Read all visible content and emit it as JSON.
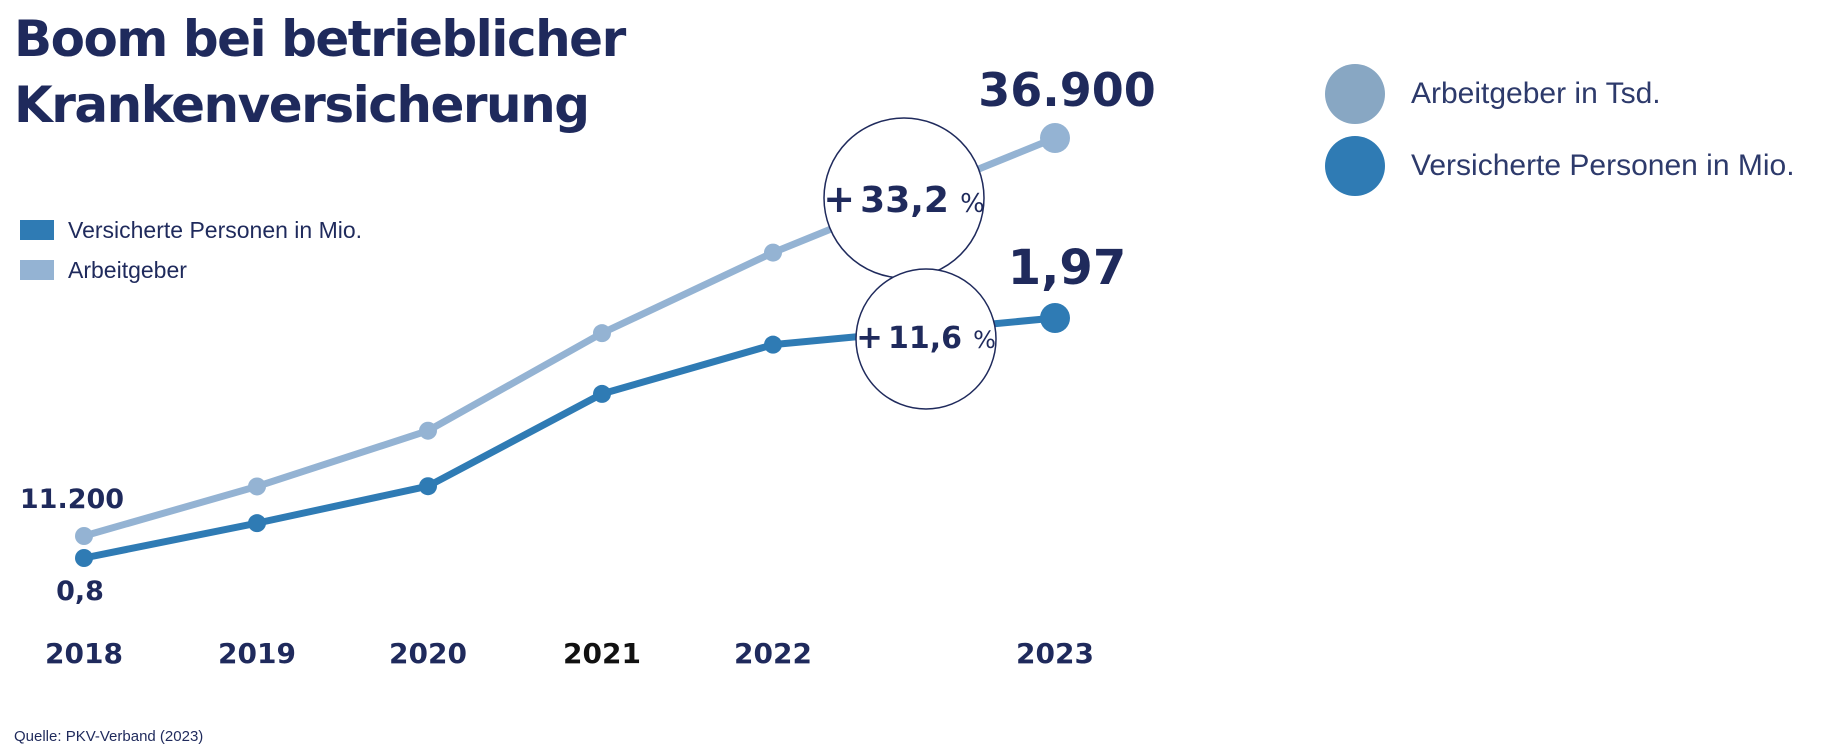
{
  "title": "Boom bei betrieblicher Krankenversicherung",
  "source": "Quelle: PKV-Verband (2023)",
  "legend_left": [
    {
      "label": "Versicherte Personen in Mio.",
      "color": "#2f7bb4"
    },
    {
      "label": "Arbeitgeber",
      "color": "#94b3d3"
    }
  ],
  "legend_right": [
    {
      "label": "Arbeitgeber in Tsd.",
      "color": "#88a7c3"
    },
    {
      "label": "Versicherte Personen in Mio.",
      "color": "#2f7bb4"
    }
  ],
  "chart_data": {
    "type": "line",
    "categories": [
      "2018",
      "2019",
      "2020",
      "2021",
      "2022",
      "2023"
    ],
    "series": [
      {
        "name": "Arbeitgeber",
        "unit": "Tsd.",
        "values": [
          11.2,
          14.4,
          18.0,
          24.3,
          29.5,
          36.9
        ],
        "color": "#94b3d3"
      },
      {
        "name": "Versicherte Personen in Mio.",
        "values": [
          0.8,
          0.97,
          1.15,
          1.6,
          1.84,
          1.97
        ],
        "color": "#2f7bb4"
      }
    ],
    "annotations": {
      "start_labels": [
        "11.200",
        "0,8"
      ],
      "end_labels": [
        "36.900",
        "1,97"
      ],
      "growth": [
        {
          "sign": "+",
          "value": "33,2",
          "unit": "%"
        },
        {
          "sign": "+",
          "value": "11,6",
          "unit": "%"
        }
      ]
    },
    "grid": false,
    "legend_placement": "left and top-right"
  }
}
